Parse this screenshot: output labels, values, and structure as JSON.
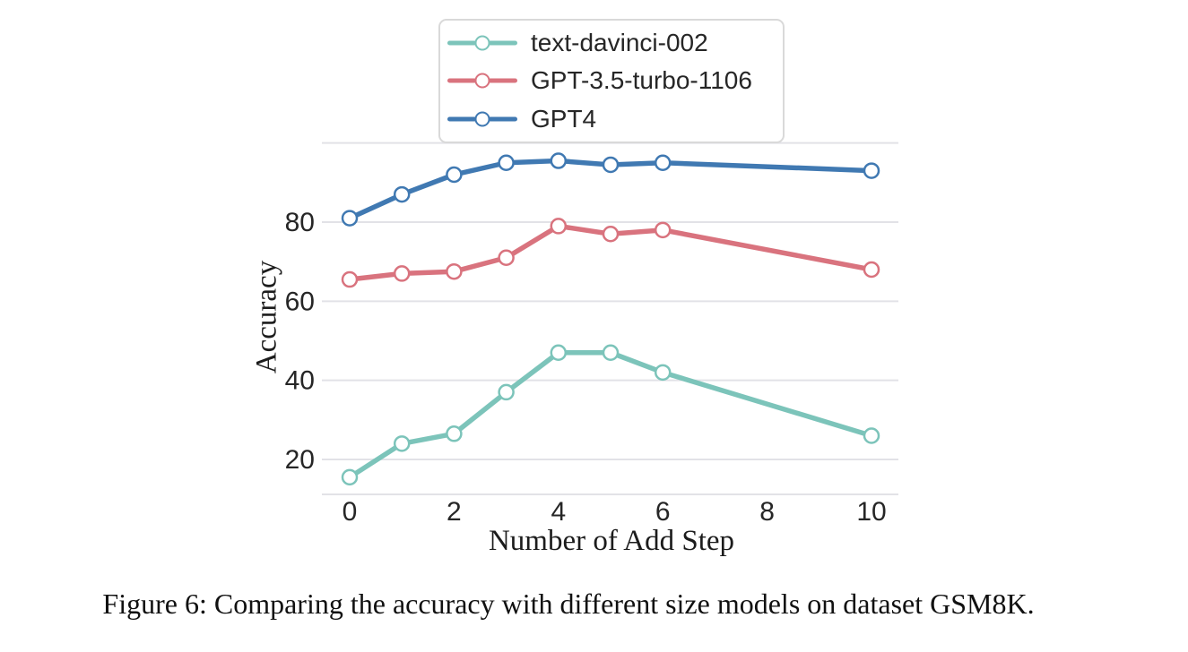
{
  "figure_caption": "Figure 6: Comparing the accuracy with different size models on dataset GSM8K.",
  "chart_data": {
    "type": "line",
    "title": "",
    "xlabel": "Number of Add Step",
    "ylabel": "Accuracy",
    "x": [
      0,
      1,
      2,
      3,
      4,
      5,
      6,
      10
    ],
    "series": [
      {
        "name": "text-davinci-002",
        "color": "#7cc4ba",
        "values": [
          15.5,
          24,
          26.5,
          37,
          47,
          47,
          42,
          26
        ]
      },
      {
        "name": "GPT-3.5-turbo-1106",
        "color": "#d9737e",
        "values": [
          65.5,
          67,
          67.5,
          71,
          79,
          77,
          78,
          68
        ]
      },
      {
        "name": "GPT4",
        "color": "#4079b2",
        "values": [
          81,
          87,
          92,
          95,
          95.5,
          94.5,
          95,
          93
        ]
      }
    ],
    "x_tick_labels": [
      "0",
      "2",
      "4",
      "6",
      "8",
      "10"
    ],
    "x_tick_values": [
      0,
      2,
      4,
      6,
      8,
      10
    ],
    "y_tick_labels": [
      "20",
      "40",
      "60",
      "80"
    ],
    "y_tick_values": [
      20,
      40,
      60,
      80
    ],
    "y_gridline_values": [
      20,
      40,
      60,
      80,
      100
    ],
    "xlim": [
      -0.55,
      10.55
    ],
    "ylim": [
      11,
      100.5
    ],
    "grid": "horizontal-only",
    "gridline_color": "#e2e2e7",
    "marker": "circle-open-white",
    "legend_position": "top-center"
  }
}
